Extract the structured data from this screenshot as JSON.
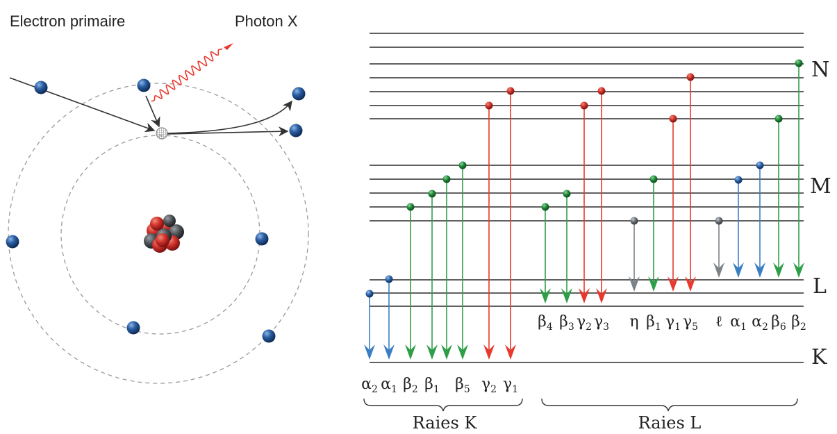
{
  "atom": {
    "electron_label": "Electron primaire",
    "photon_label": "Photon X"
  },
  "shell_labels": [
    "N",
    "M",
    "L",
    "K"
  ],
  "groups": {
    "k": "Raies K",
    "l": "Raies L"
  },
  "colors": {
    "blue": "#3a7fc4",
    "green": "#2e9e49",
    "red": "#e8392e",
    "gray": "#7b8288",
    "electron": "#1f4f8f",
    "nucleus_red": "#c0282b",
    "nucleus_gray": "#4a4d52"
  },
  "transitions": [
    {
      "greek": "α",
      "sub": "2",
      "color": "blue"
    },
    {
      "greek": "α",
      "sub": "1",
      "color": "blue"
    },
    {
      "greek": "β",
      "sub": "2",
      "color": "green"
    },
    {
      "greek": "β",
      "sub": "1",
      "color": "green"
    },
    {
      "greek": "",
      "sub": "",
      "color": "green"
    },
    {
      "greek": "β",
      "sub": "5",
      "color": "green"
    },
    {
      "greek": "γ",
      "sub": "2",
      "color": "red"
    },
    {
      "greek": "γ",
      "sub": "1",
      "color": "red"
    },
    {
      "greek": "β",
      "sub": "4",
      "color": "green"
    },
    {
      "greek": "β",
      "sub": "3",
      "color": "green"
    },
    {
      "greek": "γ",
      "sub": "2",
      "color": "red"
    },
    {
      "greek": "γ",
      "sub": "3",
      "color": "red"
    },
    {
      "greek": "η",
      "sub": "",
      "color": "gray"
    },
    {
      "greek": "β",
      "sub": "1",
      "color": "green"
    },
    {
      "greek": "γ",
      "sub": "1",
      "color": "red"
    },
    {
      "greek": "γ",
      "sub": "5",
      "color": "red"
    },
    {
      "greek": "ℓ",
      "sub": "",
      "color": "gray"
    },
    {
      "greek": "α",
      "sub": "1",
      "color": "blue"
    },
    {
      "greek": "α",
      "sub": "2",
      "color": "blue"
    },
    {
      "greek": "β",
      "sub": "6",
      "color": "green"
    },
    {
      "greek": "β",
      "sub": "2",
      "color": "green"
    }
  ]
}
